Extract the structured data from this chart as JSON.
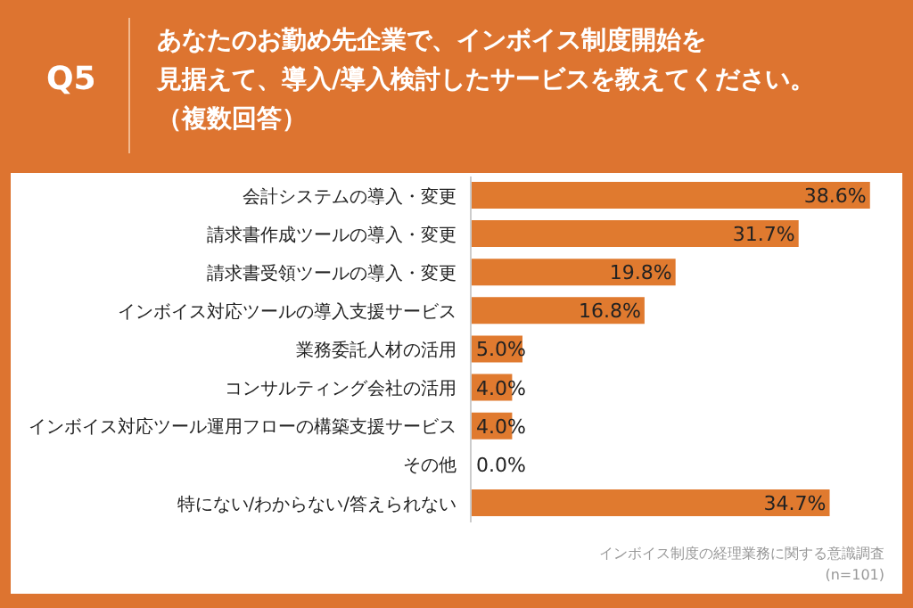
{
  "chart_data": {
    "type": "bar",
    "orientation": "horizontal",
    "title": "Q5",
    "subtitle": "あなたのお勤め先企業で、インボイス制度開始を見据えて、導入/導入検討したサービスを教えてください。（複数回答）",
    "categories": [
      "会計システムの導入・変更",
      "請求書作成ツールの導入・変更",
      "請求書受領ツールの導入・変更",
      "インボイス対応ツールの導入支援サービス",
      "業務委託人材の活用",
      "コンサルティング会社の活用",
      "インボイス対応ツール運用フローの構築支援サービス",
      "その他",
      "特にない/わからない/答えられない"
    ],
    "values": [
      38.6,
      31.7,
      19.8,
      16.8,
      5.0,
      4.0,
      4.0,
      0.0,
      34.7
    ],
    "value_labels": [
      "38.6%",
      "31.7%",
      "19.8%",
      "16.8%",
      "5.0%",
      "4.0%",
      "4.0%",
      "0.0%",
      "34.7%"
    ],
    "color": "#e07a2f",
    "tick_labels": "y",
    "annotations": [
      "インボイス制度の経理業務に関する意識調査",
      "(n=101)"
    ]
  }
}
